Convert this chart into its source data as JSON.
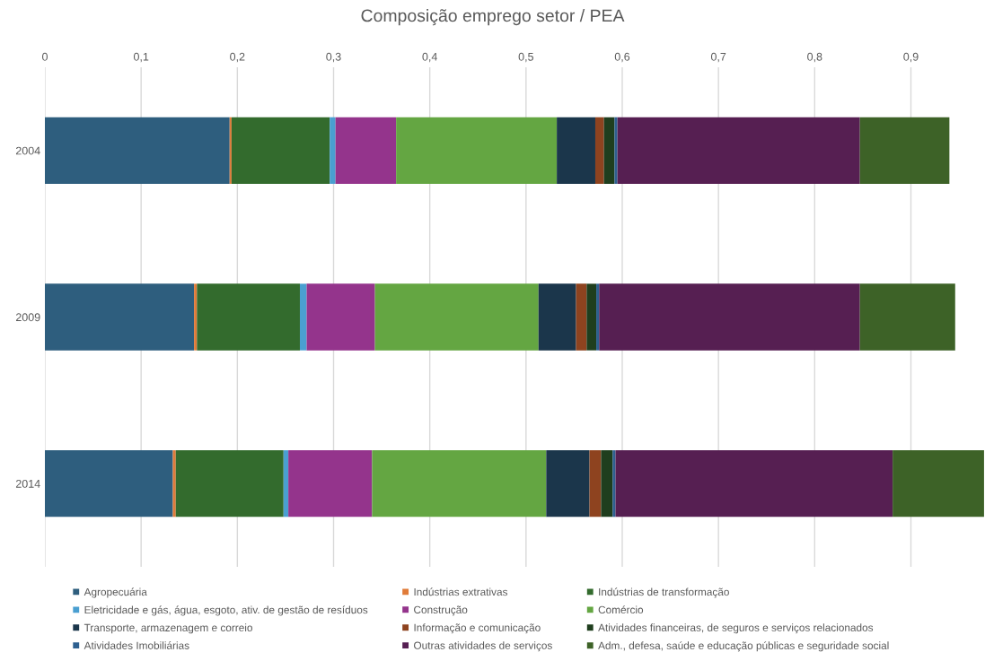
{
  "chart_data": {
    "type": "bar",
    "orientation": "horizontal",
    "stacked": true,
    "title": "Composição emprego setor / PEA",
    "categories": [
      "2004",
      "2009",
      "2014"
    ],
    "series": [
      {
        "name": "Agropecuária",
        "color": "#2e5e7e",
        "values": [
          0.192,
          0.155,
          0.133
        ]
      },
      {
        "name": "Indústrias extrativas",
        "color": "#e07b39",
        "values": [
          0.002,
          0.003,
          0.003
        ]
      },
      {
        "name": "Indústrias de transformação",
        "color": "#336b2d",
        "values": [
          0.102,
          0.107,
          0.112
        ]
      },
      {
        "name": "Eletricidade e gás, água, esgoto, ativ. de gestão de resíduos",
        "color": "#4a9fd1",
        "values": [
          0.006,
          0.007,
          0.005
        ]
      },
      {
        "name": "Construção",
        "color": "#94348c",
        "values": [
          0.063,
          0.071,
          0.087
        ]
      },
      {
        "name": "Comércio",
        "color": "#64a642",
        "values": [
          0.167,
          0.17,
          0.181
        ]
      },
      {
        "name": "Transporte, armazenagem e correio",
        "color": "#1b364b",
        "values": [
          0.04,
          0.039,
          0.045
        ]
      },
      {
        "name": "Informação e comunicação",
        "color": "#8e431f",
        "values": [
          0.009,
          0.011,
          0.012
        ]
      },
      {
        "name": "Atividades financeiras, de seguros e serviços relacionados",
        "color": "#1f3e1e",
        "values": [
          0.011,
          0.01,
          0.012
        ]
      },
      {
        "name": "Atividades Imobiliárias",
        "color": "#2e6090",
        "values": [
          0.003,
          0.003,
          0.003
        ]
      },
      {
        "name": "Outras atividades de serviços",
        "color": "#561f52",
        "values": [
          0.252,
          0.271,
          0.288
        ]
      },
      {
        "name": "Adm., defesa, saúde e educação públicas e seguridade social",
        "color": "#3d6227",
        "values": [
          0.093,
          0.099,
          0.095
        ]
      }
    ],
    "xlim": [
      0,
      0.977
    ],
    "xticks": [
      {
        "value": 0,
        "label": "0"
      },
      {
        "value": 0.1,
        "label": "0,1"
      },
      {
        "value": 0.2,
        "label": "0,2"
      },
      {
        "value": 0.3,
        "label": "0,3"
      },
      {
        "value": 0.4,
        "label": "0,4"
      },
      {
        "value": 0.5,
        "label": "0,5"
      },
      {
        "value": 0.6,
        "label": "0,6"
      },
      {
        "value": 0.7,
        "label": "0,7"
      },
      {
        "value": 0.8,
        "label": "0,8"
      },
      {
        "value": 0.9,
        "label": "0,9"
      }
    ],
    "grid": "x",
    "legend": "bottom"
  }
}
